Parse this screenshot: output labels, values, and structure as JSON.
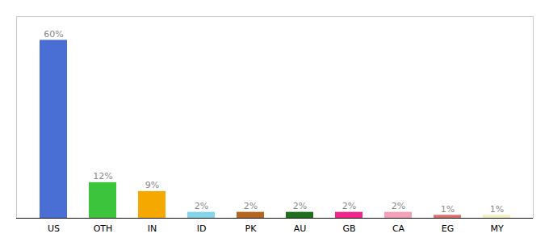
{
  "chart_data": {
    "type": "bar",
    "categories": [
      "US",
      "OTH",
      "IN",
      "ID",
      "PK",
      "AU",
      "GB",
      "CA",
      "EG",
      "MY"
    ],
    "values": [
      60,
      12,
      9,
      2,
      2,
      2,
      2,
      2,
      1,
      1
    ],
    "value_labels": [
      "60%",
      "12%",
      "9%",
      "2%",
      "2%",
      "2%",
      "2%",
      "2%",
      "1%",
      "1%"
    ],
    "colors": [
      "#4a6fd4",
      "#3cc43c",
      "#f5a800",
      "#85d4e8",
      "#b5651d",
      "#1e6e1e",
      "#f0278a",
      "#f4a0b8",
      "#d97070",
      "#f0edc0"
    ],
    "ylim": [
      0,
      68
    ],
    "data_labels": true,
    "tick_labels": "x",
    "grid": false
  }
}
